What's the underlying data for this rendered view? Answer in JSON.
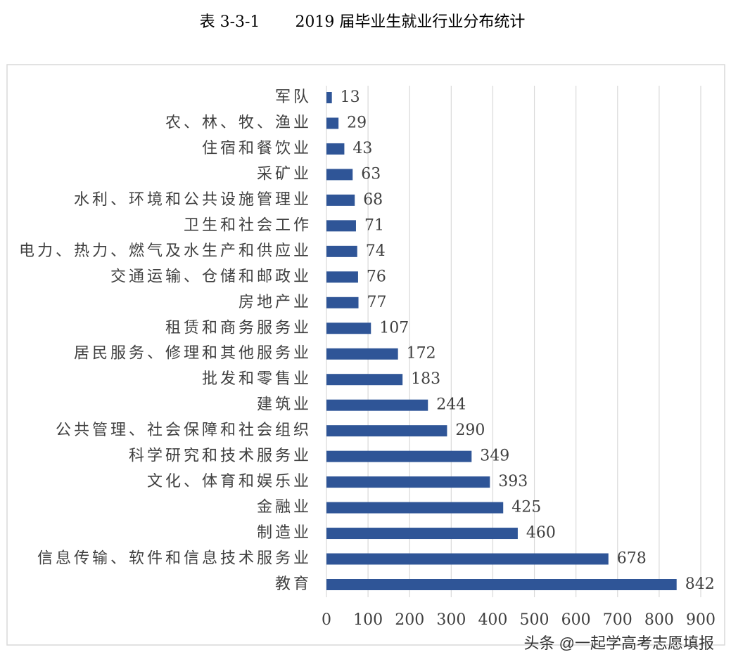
{
  "chart_data": {
    "type": "hbar",
    "table_label": "表 3-3-1",
    "title": "2019 届毕业生就业行业分布统计",
    "categories": [
      "军队",
      "农、林、牧、渔业",
      "住宿和餐饮业",
      "采矿业",
      "水利、环境和公共设施管理业",
      "卫生和社会工作",
      "电力、热力、燃气及水生产和供应业",
      "交通运输、仓储和邮政业",
      "房地产业",
      "租赁和商务服务业",
      "居民服务、修理和其他服务业",
      "批发和零售业",
      "建筑业",
      "公共管理、社会保障和社会组织",
      "科学研究和技术服务业",
      "文化、体育和娱乐业",
      "金融业",
      "制造业",
      "信息传输、软件和信息技术服务业",
      "教育"
    ],
    "values": [
      13,
      29,
      43,
      63,
      68,
      71,
      74,
      76,
      77,
      107,
      172,
      183,
      244,
      290,
      349,
      393,
      425,
      460,
      678,
      842
    ],
    "color": "#2f5597",
    "xlim": [
      0,
      900
    ],
    "xticks": [
      0,
      100,
      200,
      300,
      400,
      500,
      600,
      700,
      800,
      900
    ],
    "grid": true
  },
  "watermark": "头条 @一起学高考志愿填报"
}
